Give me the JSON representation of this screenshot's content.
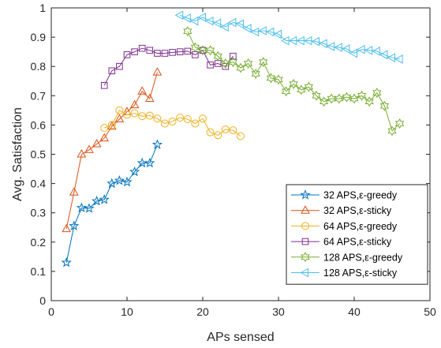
{
  "chart_data": {
    "type": "line",
    "title": "",
    "xlabel": "APs sensed",
    "ylabel": "Avg. Satisfaction",
    "xlim": [
      0,
      50
    ],
    "ylim": [
      0,
      1
    ],
    "xticks": [
      "0",
      "10",
      "20",
      "30",
      "40",
      "50"
    ],
    "yticks": [
      "0",
      "0.1",
      "0.2",
      "0.3",
      "0.4",
      "0.5",
      "0.6",
      "0.7",
      "0.8",
      "0.9",
      "1"
    ],
    "grid": false,
    "legend_position": "bottom-right",
    "series": [
      {
        "name": "32 APS,ε-greedy",
        "color": "#0072BD",
        "marker": "star",
        "x": [
          2,
          3,
          4,
          5,
          6,
          7,
          8,
          9,
          10,
          11,
          12,
          13,
          14
        ],
        "y": [
          0.13,
          0.255,
          0.317,
          0.315,
          0.34,
          0.345,
          0.4,
          0.41,
          0.405,
          0.44,
          0.47,
          0.47,
          0.533
        ]
      },
      {
        "name": "32 APS,ε-sticky",
        "color": "#D95319",
        "marker": "triangle-up",
        "x": [
          2,
          3,
          4,
          5,
          6,
          7,
          8,
          9,
          10,
          11,
          12,
          13,
          14
        ],
        "y": [
          0.245,
          0.37,
          0.5,
          0.515,
          0.535,
          0.555,
          0.595,
          0.62,
          0.645,
          0.668,
          0.715,
          0.69,
          0.78
        ]
      },
      {
        "name": "64 APS,ε-greedy",
        "color": "#EDB120",
        "marker": "circle",
        "x": [
          7,
          8,
          9,
          10,
          11,
          12,
          13,
          14,
          15,
          16,
          17,
          18,
          19,
          20,
          21,
          22,
          23,
          24,
          25
        ],
        "y": [
          0.59,
          0.6,
          0.65,
          0.635,
          0.64,
          0.63,
          0.632,
          0.622,
          0.605,
          0.612,
          0.625,
          0.62,
          0.605,
          0.622,
          0.575,
          0.565,
          0.585,
          0.582,
          0.562
        ]
      },
      {
        "name": "64 APS,ε-sticky",
        "color": "#7E2F8E",
        "marker": "square",
        "x": [
          7,
          8,
          9,
          10,
          11,
          12,
          13,
          14,
          15,
          16,
          17,
          18,
          19,
          20,
          21,
          22,
          23,
          24
        ],
        "y": [
          0.735,
          0.785,
          0.8,
          0.84,
          0.85,
          0.862,
          0.855,
          0.845,
          0.845,
          0.848,
          0.85,
          0.852,
          0.84,
          0.855,
          0.805,
          0.81,
          0.8,
          0.835
        ]
      },
      {
        "name": "128 APS,ε-greedy",
        "color": "#77AC30",
        "marker": "hexagram",
        "x": [
          18,
          19,
          20,
          21,
          22,
          23,
          24,
          25,
          26,
          27,
          28,
          29,
          30,
          31,
          32,
          33,
          34,
          35,
          36,
          37,
          38,
          39,
          40,
          41,
          42,
          43,
          44,
          45,
          46
        ],
        "y": [
          0.92,
          0.865,
          0.855,
          0.855,
          0.835,
          0.81,
          0.815,
          0.795,
          0.81,
          0.775,
          0.815,
          0.76,
          0.755,
          0.715,
          0.74,
          0.72,
          0.73,
          0.7,
          0.68,
          0.69,
          0.69,
          0.695,
          0.69,
          0.7,
          0.68,
          0.71,
          0.665,
          0.58,
          0.605
        ]
      },
      {
        "name": "128 APS,ε-sticky",
        "color": "#4DBEEE",
        "marker": "triangle-left",
        "x": [
          17,
          18,
          19,
          20,
          21,
          22,
          23,
          24,
          25,
          26,
          27,
          28,
          29,
          30,
          31,
          32,
          33,
          34,
          35,
          36,
          37,
          38,
          39,
          40,
          41,
          42,
          43,
          44,
          45,
          46
        ],
        "y": [
          0.975,
          0.965,
          0.955,
          0.968,
          0.955,
          0.948,
          0.935,
          0.95,
          0.945,
          0.93,
          0.918,
          0.922,
          0.918,
          0.91,
          0.888,
          0.888,
          0.888,
          0.888,
          0.885,
          0.878,
          0.868,
          0.865,
          0.86,
          0.845,
          0.858,
          0.855,
          0.852,
          0.84,
          0.83,
          0.825
        ]
      }
    ]
  }
}
